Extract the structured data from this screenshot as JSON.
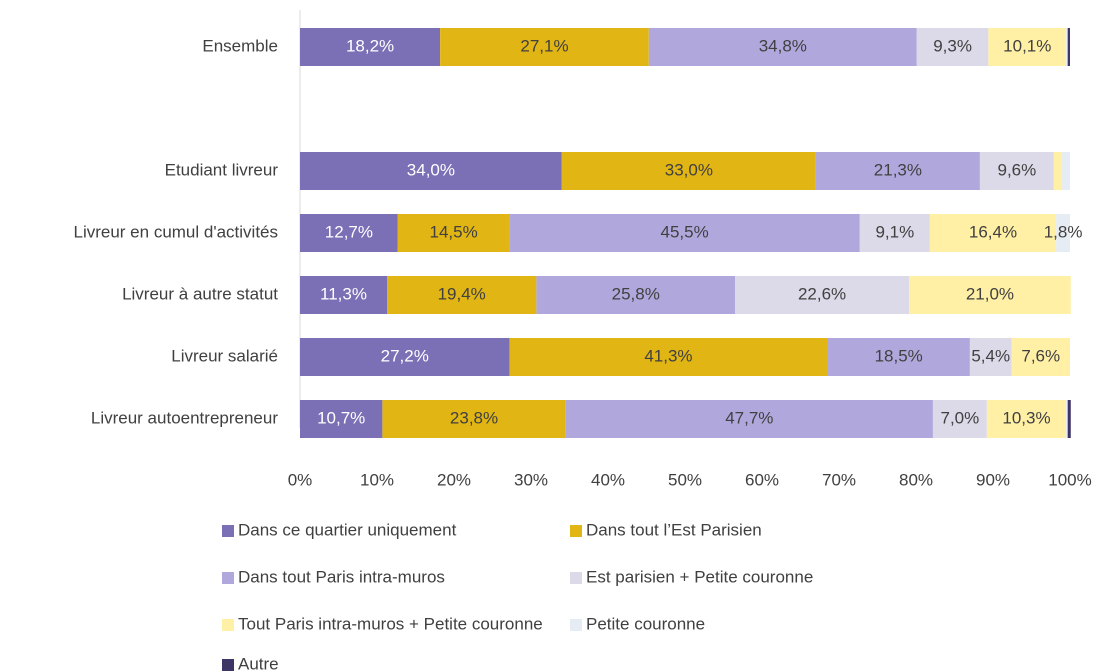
{
  "chart_data": {
    "type": "stacked_bar_horizontal",
    "categories": [
      "Ensemble",
      null,
      "Etudiant livreur",
      "Livreur en cumul d'activités",
      "Livreur à autre statut",
      "Livreur salarié",
      "Livreur autoentrepreneur"
    ],
    "series": [
      {
        "name": "Dans ce quartier uniquement",
        "color": "#7b6fb5",
        "values": [
          18.2,
          null,
          34.0,
          12.7,
          11.3,
          27.2,
          10.7
        ],
        "value_labels": [
          "18,2%",
          null,
          "34,0%",
          "12,7%",
          "11,3%",
          "27,2%",
          "10,7%"
        ]
      },
      {
        "name": "Dans tout l’Est Parisien",
        "color": "#e0b514",
        "values": [
          27.1,
          null,
          33.0,
          14.5,
          19.4,
          41.3,
          23.8
        ],
        "value_labels": [
          "27,1%",
          null,
          "33,0%",
          "14,5%",
          "19,4%",
          "41,3%",
          "23,8%"
        ]
      },
      {
        "name": "Dans tout Paris intra-muros",
        "color": "#b0a8dc",
        "values": [
          34.8,
          null,
          21.3,
          45.5,
          25.8,
          18.5,
          47.7
        ],
        "value_labels": [
          "34,8%",
          null,
          "21,3%",
          "45,5%",
          "25,8%",
          "18,5%",
          "47,7%"
        ]
      },
      {
        "name": "Est parisien + Petite couronne",
        "color": "#dcd9e8",
        "values": [
          9.3,
          null,
          9.6,
          9.1,
          22.6,
          5.4,
          7.0
        ],
        "value_labels": [
          "9,3%",
          null,
          "9,6%",
          "9,1%",
          "22,6%",
          "5,4%",
          "7,0%"
        ]
      },
      {
        "name": "Tout Paris intra-muros + Petite couronne",
        "color": "#fff0a6",
        "values": [
          10.1,
          null,
          1.0,
          16.4,
          21.0,
          7.6,
          10.3
        ],
        "value_labels": [
          "10,1%",
          null,
          null,
          "16,4%",
          "21,0%",
          "7,6%",
          "10,3%"
        ]
      },
      {
        "name": "Petite couronne",
        "color": "#e6ecf3",
        "values": [
          0.2,
          null,
          1.1,
          1.8,
          0,
          0,
          0.2
        ],
        "value_labels": [
          null,
          null,
          null,
          "1,8%",
          null,
          null,
          null
        ]
      },
      {
        "name": "Autre",
        "color": "#3d3566",
        "values": [
          0.3,
          null,
          0,
          0,
          0,
          0,
          0.4
        ],
        "value_labels": [
          null,
          null,
          null,
          null,
          null,
          null,
          null
        ]
      }
    ],
    "xlim": [
      0,
      100
    ],
    "xticks": [
      {
        "value": 0,
        "label": "0%"
      },
      {
        "value": 10,
        "label": "10%"
      },
      {
        "value": 20,
        "label": "20%"
      },
      {
        "value": 30,
        "label": "30%"
      },
      {
        "value": 40,
        "label": "40%"
      },
      {
        "value": 50,
        "label": "50%"
      },
      {
        "value": 60,
        "label": "60%"
      },
      {
        "value": 70,
        "label": "70%"
      },
      {
        "value": 80,
        "label": "80%"
      },
      {
        "value": 90,
        "label": "90%"
      },
      {
        "value": 100,
        "label": "100%"
      }
    ],
    "legend": "bottom"
  }
}
